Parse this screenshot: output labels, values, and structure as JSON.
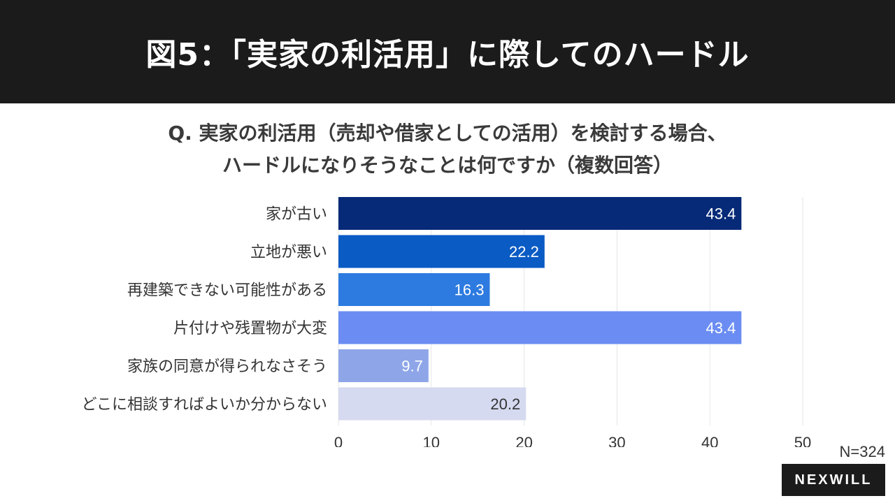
{
  "header": {
    "title": "図5：「実家の利活用」に際してのハードル"
  },
  "question": {
    "line1": "Q. 実家の利活用（売却や借家としての活用）を検討する場合、",
    "line2": "ハードルになりそうなことは何ですか（複数回答）"
  },
  "footer": {
    "n_label": "N=324",
    "logo": "NEXWILL"
  },
  "chart_data": {
    "type": "bar",
    "orientation": "horizontal",
    "categories": [
      "家が古い",
      "立地が悪い",
      "再建築できない可能性がある",
      "片付けや残置物が大変",
      "家族の同意が得られなさそう",
      "どこに相談すればよいか分からない"
    ],
    "values": [
      43.4,
      22.2,
      16.3,
      43.4,
      9.7,
      20.2
    ],
    "value_labels": [
      "43.4",
      "22.2",
      "16.3",
      "43.4",
      "9.7",
      "20.2"
    ],
    "bar_colors": [
      "#062a78",
      "#0a5bc4",
      "#2d7be0",
      "#6b8df3",
      "#8ea6e8",
      "#d5daf0"
    ],
    "label_colors": [
      "#ffffff",
      "#ffffff",
      "#ffffff",
      "#ffffff",
      "#ffffff",
      "#333333"
    ],
    "xlim": [
      0,
      50
    ],
    "xticks": [
      "0",
      "10",
      "20",
      "30",
      "40",
      "50"
    ],
    "grid": true
  }
}
